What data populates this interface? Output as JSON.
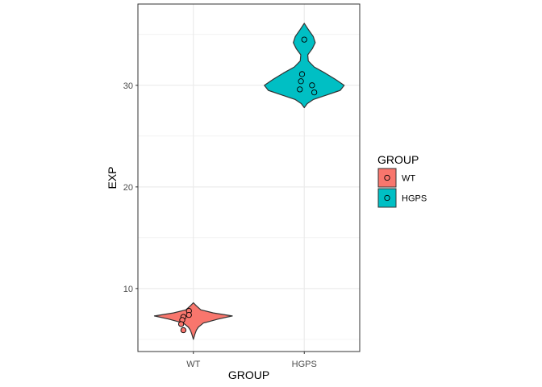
{
  "chart_data": {
    "type": "violin",
    "xlabel": "GROUP",
    "ylabel": "EXP",
    "categories": [
      "WT",
      "HGPS"
    ],
    "ylim": [
      3.8,
      38.0
    ],
    "yticks": [
      10,
      20,
      30
    ],
    "grid": true,
    "legend": {
      "title": "GROUP",
      "placement": "right",
      "entries": [
        {
          "label": "WT",
          "color": "#F8766D"
        },
        {
          "label": "HGPS",
          "color": "#00BFC4"
        }
      ]
    },
    "series": [
      {
        "category": "WT",
        "color": "#F8766D",
        "density": [
          [
            5.0,
            0.0
          ],
          [
            5.5,
            0.03
          ],
          [
            5.9,
            0.06
          ],
          [
            6.2,
            0.1
          ],
          [
            6.6,
            0.2
          ],
          [
            7.0,
            0.5
          ],
          [
            7.3,
            0.78
          ],
          [
            7.6,
            0.4
          ],
          [
            7.9,
            0.15
          ],
          [
            8.3,
            0.06
          ],
          [
            8.6,
            0.0
          ]
        ],
        "points": [
          {
            "x": -0.04,
            "y": 7.8
          },
          {
            "x": -0.04,
            "y": 7.4
          },
          {
            "x": -0.09,
            "y": 7.2
          },
          {
            "x": -0.1,
            "y": 6.9
          },
          {
            "x": -0.11,
            "y": 6.5
          },
          {
            "x": -0.09,
            "y": 5.9
          }
        ]
      },
      {
        "category": "HGPS",
        "color": "#00BFC4",
        "density": [
          [
            27.8,
            0.0
          ],
          [
            28.2,
            0.06
          ],
          [
            28.6,
            0.18
          ],
          [
            29.0,
            0.42
          ],
          [
            29.5,
            0.72
          ],
          [
            30.0,
            0.8
          ],
          [
            30.6,
            0.62
          ],
          [
            31.2,
            0.42
          ],
          [
            31.8,
            0.2
          ],
          [
            32.4,
            0.08
          ],
          [
            33.0,
            0.07
          ],
          [
            33.6,
            0.16
          ],
          [
            34.2,
            0.22
          ],
          [
            34.8,
            0.18
          ],
          [
            35.5,
            0.08
          ],
          [
            36.1,
            0.0
          ]
        ],
        "points": [
          {
            "x": 0.0,
            "y": 34.5
          },
          {
            "x": -0.02,
            "y": 31.1
          },
          {
            "x": -0.03,
            "y": 30.4
          },
          {
            "x": 0.07,
            "y": 30.0
          },
          {
            "x": -0.04,
            "y": 29.6
          },
          {
            "x": 0.09,
            "y": 29.3
          }
        ]
      }
    ]
  }
}
